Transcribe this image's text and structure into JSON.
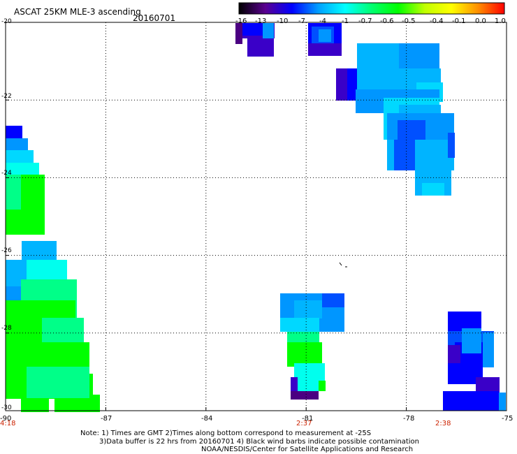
{
  "title": "ASCAT 25KM MLE-3 ascending",
  "date": "20160701",
  "colorbar": {
    "labels": [
      "-16",
      "-13",
      "-10",
      "-7",
      "-4",
      "-1",
      "-0.7",
      "-0.6",
      "-0.5",
      "-0.4",
      "-0.1",
      "0.0",
      "1.0"
    ],
    "gradient": [
      "#000000",
      "#5a0090",
      "#0000ff",
      "#00a0ff",
      "#00ffff",
      "#00ff70",
      "#00ff00",
      "#c0ff00",
      "#ffff00",
      "#ff9000",
      "#ff0000"
    ]
  },
  "y_axis_labels": [
    "-20",
    "-22",
    "-24",
    "-26",
    "-28",
    "-30"
  ],
  "x_axis_labels": [
    "-90",
    "-87",
    "-84",
    "-81",
    "-78",
    "-75"
  ],
  "pass_times": [
    "4:18",
    "2:37",
    "2:38"
  ],
  "pass_time_color": "#cc2200",
  "notes": {
    "line1": "Note: 1) Times are GMT 2)Times along bottom correspond to measurement at -25S",
    "line2": "3)Data buffer is 22 hrs from 20160701 4) Black wind barbs indicate possible contamination",
    "line3": "NOAA/NESDIS/Center for Satellite Applications and Research"
  },
  "map": {
    "lon_range": [
      -90,
      -75
    ],
    "lat_range": [
      -30,
      -20
    ],
    "grid": "dotted",
    "data_colors": {
      "deep_purple": "#4b0082",
      "indigo": "#3a00c8",
      "blue": "#0000ff",
      "mid_blue": "#0050ff",
      "sky": "#0096ff",
      "light_sky": "#00b4ff",
      "cyan": "#00d8ff",
      "aqua": "#00ffee",
      "spring": "#00ff88",
      "green": "#00ff00"
    }
  }
}
